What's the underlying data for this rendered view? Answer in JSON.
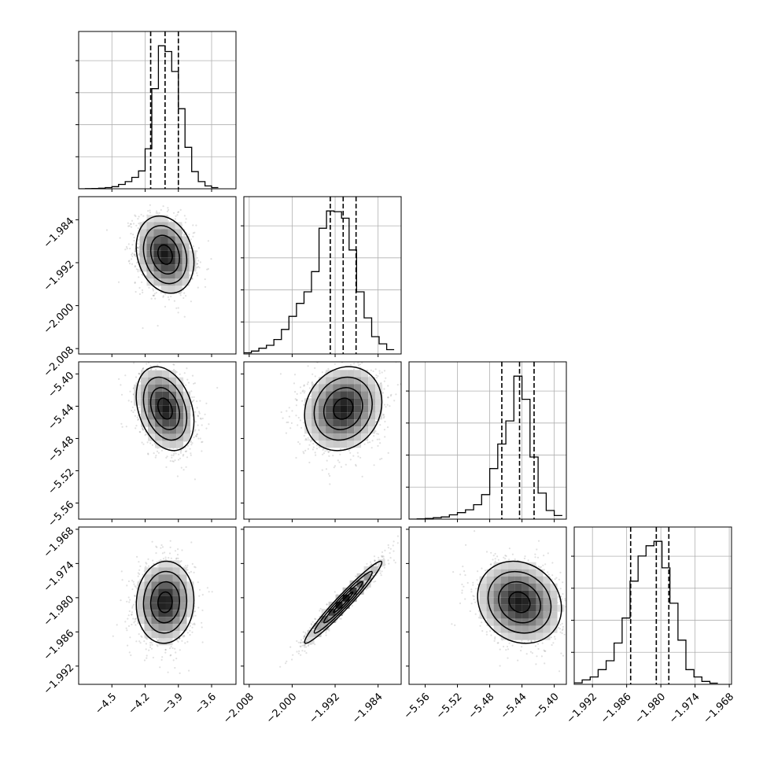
{
  "chart_data": {
    "type": "corner",
    "title": "",
    "parameters": [
      "",
      "",
      "",
      ""
    ],
    "grid": true,
    "axes": [
      {
        "range": [
          -4.8,
          -3.38
        ],
        "ticks": [
          -4.5,
          -4.2,
          -3.9,
          -3.6
        ],
        "tick_labels": [
          "−4.5",
          "−4.2",
          "−3.9",
          "−3.6"
        ],
        "quantiles": [
          -4.15,
          -4.02,
          -3.9
        ]
      },
      {
        "range": [
          -2.009,
          -1.9797
        ],
        "ticks": [
          -2.008,
          -2.0,
          -1.992,
          -1.984
        ],
        "tick_labels": [
          "−2.008",
          "−2.000",
          "−1.992",
          "−1.984"
        ],
        "quantiles": [
          -1.9929,
          -1.9905,
          -1.9881
        ]
      },
      {
        "range": [
          -5.58,
          -5.385
        ],
        "ticks": [
          -5.56,
          -5.52,
          -5.48,
          -5.44,
          -5.4
        ],
        "tick_labels": [
          "−5.56",
          "−5.52",
          "−5.48",
          "−5.44",
          "−5.40"
        ],
        "quantiles": [
          -5.465,
          -5.443,
          -5.425
        ]
      },
      {
        "range": [
          -1.9952,
          -1.9676
        ],
        "ticks": [
          -1.992,
          -1.986,
          -1.98,
          -1.974,
          -1.968
        ],
        "tick_labels": [
          "−1.992",
          "−1.986",
          "−1.980",
          "−1.974",
          "−1.968"
        ],
        "quantiles": [
          -1.9853,
          -1.9808,
          -1.9786
        ]
      }
    ],
    "diagonal_histograms": [
      {
        "edges": [
          -4.8,
          -4.74,
          -4.68,
          -4.62,
          -4.56,
          -4.5,
          -4.44,
          -4.38,
          -4.32,
          -4.26,
          -4.2,
          -4.14,
          -4.08,
          -4.02,
          -3.96,
          -3.9,
          -3.84,
          -3.78,
          -3.72,
          -3.66,
          -3.6,
          -3.54
        ],
        "counts": [
          0,
          1,
          2,
          4,
          8,
          15,
          30,
          50,
          80,
          125,
          280,
          700,
          1000,
          960,
          820,
          560,
          290,
          120,
          50,
          20,
          8
        ]
      },
      {
        "edges": [
          -2.009,
          -2.0076,
          -2.0062,
          -2.0048,
          -2.0034,
          -2.002,
          -2.0006,
          -1.9992,
          -1.9978,
          -1.9964,
          -1.995,
          -1.9936,
          -1.9922,
          -1.9908,
          -1.9894,
          -1.988,
          -1.9866,
          -1.9852,
          -1.9838,
          -1.9824,
          -1.981
        ],
        "counts": [
          8,
          20,
          40,
          60,
          100,
          170,
          260,
          350,
          430,
          570,
          870,
          990,
          985,
          940,
          720,
          430,
          250,
          120,
          70,
          30
        ]
      },
      {
        "edges": [
          -5.58,
          -5.57,
          -5.56,
          -5.55,
          -5.54,
          -5.53,
          -5.52,
          -5.51,
          -5.5,
          -5.49,
          -5.48,
          -5.47,
          -5.46,
          -5.45,
          -5.44,
          -5.43,
          -5.42,
          -5.41,
          -5.4,
          -5.39
        ],
        "counts": [
          0,
          2,
          5,
          10,
          15,
          30,
          45,
          65,
          100,
          170,
          350,
          520,
          680,
          990,
          830,
          430,
          180,
          60,
          25
        ]
      },
      {
        "edges": [
          -1.9952,
          -1.9938,
          -1.9924,
          -1.991,
          -1.9896,
          -1.9882,
          -1.9868,
          -1.9854,
          -1.984,
          -1.9826,
          -1.9812,
          -1.9798,
          -1.9784,
          -1.977,
          -1.9756,
          -1.9742,
          -1.9728,
          -1.9714,
          -1.97
        ],
        "counts": [
          10,
          30,
          50,
          100,
          160,
          280,
          450,
          700,
          870,
          940,
          970,
          790,
          550,
          300,
          100,
          50,
          20,
          8
        ]
      }
    ],
    "joint_distributions": [
      {
        "x": 0,
        "y": 1,
        "mean_x": -4.02,
        "mean_y": -1.9905,
        "sd_x": 0.13,
        "sd_y": 0.0036,
        "corr": -0.2
      },
      {
        "x": 0,
        "y": 2,
        "mean_x": -4.02,
        "mean_y": -5.443,
        "sd_x": 0.13,
        "sd_y": 0.026,
        "corr": -0.3
      },
      {
        "x": 0,
        "y": 3,
        "mean_x": -4.02,
        "mean_y": -1.9808,
        "sd_x": 0.13,
        "sd_y": 0.0036,
        "corr": 0.05
      },
      {
        "x": 1,
        "y": 2,
        "mean_x": -1.9905,
        "mean_y": -5.443,
        "sd_x": 0.0036,
        "sd_y": 0.026,
        "corr": 0.15
      },
      {
        "x": 1,
        "y": 3,
        "mean_x": -1.9905,
        "mean_y": -1.9808,
        "sd_x": 0.0036,
        "sd_y": 0.0036,
        "corr": 0.97
      },
      {
        "x": 2,
        "y": 3,
        "mean_x": -5.443,
        "mean_y": -1.9808,
        "sd_x": 0.026,
        "sd_y": 0.0036,
        "corr": -0.15
      }
    ],
    "contour_levels_sigma": [
      0.5,
      1.0,
      1.5,
      2.0
    ]
  }
}
